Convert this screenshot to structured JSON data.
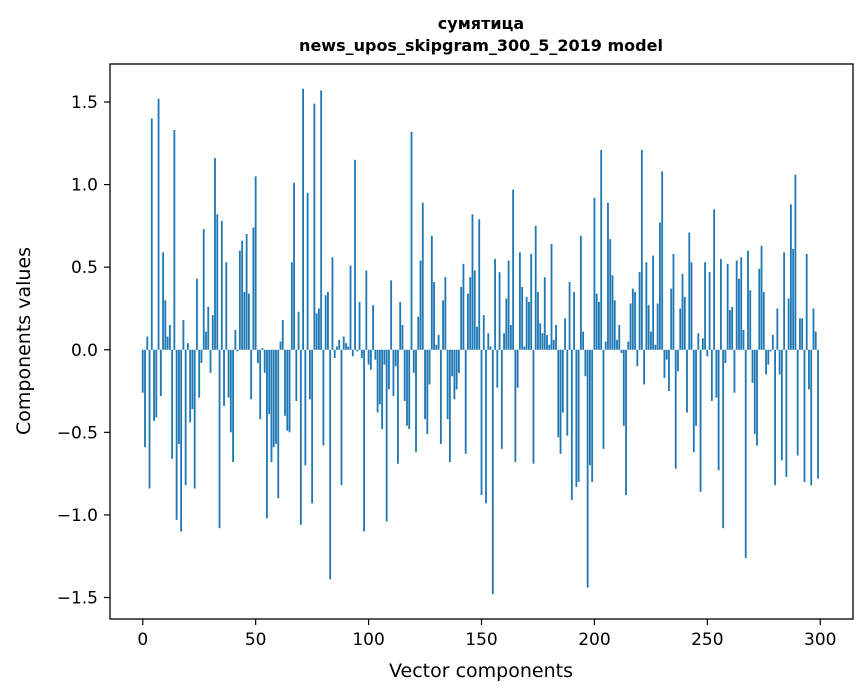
{
  "chart_data": {
    "type": "bar",
    "title": "сумятица",
    "subtitle": "news_upos_skipgram_300_5_2019 model",
    "xlabel": "Vector components",
    "ylabel": "Components values",
    "xlim": [
      -14.5,
      314.5
    ],
    "ylim": [
      -1.63,
      1.73
    ],
    "x_ticks": [
      0,
      50,
      100,
      150,
      200,
      250,
      300
    ],
    "x_tick_labels": [
      "0",
      "50",
      "100",
      "150",
      "200",
      "250",
      "300"
    ],
    "y_ticks": [
      -1.5,
      -1.0,
      -0.5,
      0.0,
      0.5,
      1.0,
      1.5
    ],
    "y_tick_labels": [
      "−1.5",
      "−1.0",
      "−0.5",
      "0.0",
      "0.5",
      "1.0",
      "1.5"
    ],
    "grid": false,
    "bar_color": "#1f77b4",
    "x": "0..299",
    "values": [
      -0.26,
      -0.59,
      0.08,
      -0.84,
      1.4,
      -0.43,
      -0.41,
      1.52,
      -0.28,
      0.59,
      0.3,
      0.08,
      0.15,
      -0.66,
      1.33,
      -1.03,
      -0.57,
      -1.1,
      0.18,
      -0.82,
      0.04,
      -0.44,
      -0.36,
      -0.84,
      0.43,
      -0.29,
      -0.08,
      0.73,
      0.11,
      0.26,
      -0.14,
      0.21,
      1.16,
      0.82,
      -1.08,
      0.78,
      -0.34,
      0.53,
      -0.29,
      -0.5,
      -0.68,
      0.12,
      -0.01,
      0.6,
      0.66,
      0.35,
      0.7,
      0.34,
      -0.3,
      0.74,
      1.05,
      -0.08,
      -0.42,
      0.01,
      -0.14,
      -1.02,
      -0.39,
      -0.68,
      -0.59,
      -0.57,
      -0.9,
      0.05,
      0.18,
      -0.4,
      -0.49,
      -0.5,
      0.53,
      1.01,
      -0.31,
      0.23,
      -1.06,
      1.58,
      -0.7,
      0.95,
      -0.3,
      -0.93,
      1.49,
      0.22,
      0.25,
      1.57,
      -0.58,
      0.33,
      0.35,
      -1.39,
      0.56,
      -0.05,
      0.02,
      0.06,
      -0.82,
      0.08,
      0.04,
      0.02,
      0.51,
      -0.04,
      1.15,
      -0.01,
      0.29,
      -0.05,
      -1.1,
      0.48,
      -0.09,
      -0.12,
      0.27,
      -0.06,
      -0.38,
      -0.33,
      -0.48,
      -0.09,
      -1.04,
      -0.24,
      0.42,
      -0.28,
      -0.1,
      -0.69,
      0.29,
      0.15,
      -0.31,
      -0.46,
      -0.48,
      1.32,
      -0.14,
      -0.62,
      0.2,
      0.54,
      0.89,
      -0.42,
      -0.51,
      -0.21,
      0.69,
      0.41,
      0.03,
      0.09,
      -0.57,
      0.3,
      0.44,
      -0.42,
      -0.68,
      -0.16,
      -0.3,
      -0.24,
      -0.14,
      0.38,
      0.52,
      -0.63,
      0.34,
      0.44,
      0.82,
      0.48,
      0.14,
      0.79,
      -0.88,
      0.21,
      -0.93,
      0.1,
      0.02,
      -1.48,
      0.55,
      -0.23,
      0.47,
      -0.6,
      0.1,
      0.31,
      0.54,
      0.15,
      0.97,
      -0.68,
      -0.23,
      0.59,
      0.38,
      0.02,
      0.32,
      0.29,
      0.58,
      -0.69,
      0.75,
      0.35,
      0.16,
      0.1,
      0.44,
      0.09,
      0.03,
      0.64,
      0.06,
      0.15,
      -0.53,
      -0.63,
      -0.38,
      0.19,
      -0.52,
      0.41,
      -0.91,
      0.35,
      -0.83,
      -0.8,
      0.69,
      0.11,
      -0.16,
      -1.44,
      -0.7,
      -0.8,
      0.92,
      0.34,
      0.29,
      1.21,
      -0.6,
      0.05,
      0.89,
      0.67,
      0.45,
      0.3,
      0.06,
      0.15,
      -0.02,
      -0.46,
      -0.88,
      0.05,
      0.28,
      0.37,
      0.35,
      -0.1,
      0.47,
      1.21,
      -0.21,
      0.53,
      0.27,
      0.11,
      0.57,
      0.03,
      0.28,
      0.77,
      1.08,
      -0.17,
      -0.06,
      -0.25,
      0.37,
      0.58,
      -0.72,
      -0.13,
      0.25,
      0.46,
      0.32,
      -0.38,
      0.71,
      0.53,
      -0.62,
      -0.46,
      0.1,
      -0.86,
      0.07,
      0.53,
      -0.04,
      0.47,
      -0.31,
      0.85,
      -0.29,
      -0.73,
      0.55,
      -1.08,
      -0.08,
      0.52,
      0.24,
      0.26,
      -0.26,
      0.54,
      0.43,
      0.56,
      0.12,
      -1.26,
      0.6,
      0.36,
      -0.2,
      -0.51,
      -0.58,
      0.49,
      0.63,
      0.35,
      -0.15,
      -0.09,
      -0.01,
      0.09,
      -0.82,
      0.25,
      -0.15,
      -0.67,
      0.59,
      -0.77,
      0.31,
      0.88,
      0.61,
      1.06,
      -0.64,
      0.19,
      0.19,
      -0.8,
      0.58,
      -0.24,
      -0.82,
      0.25,
      0.11,
      -0.78
    ]
  }
}
